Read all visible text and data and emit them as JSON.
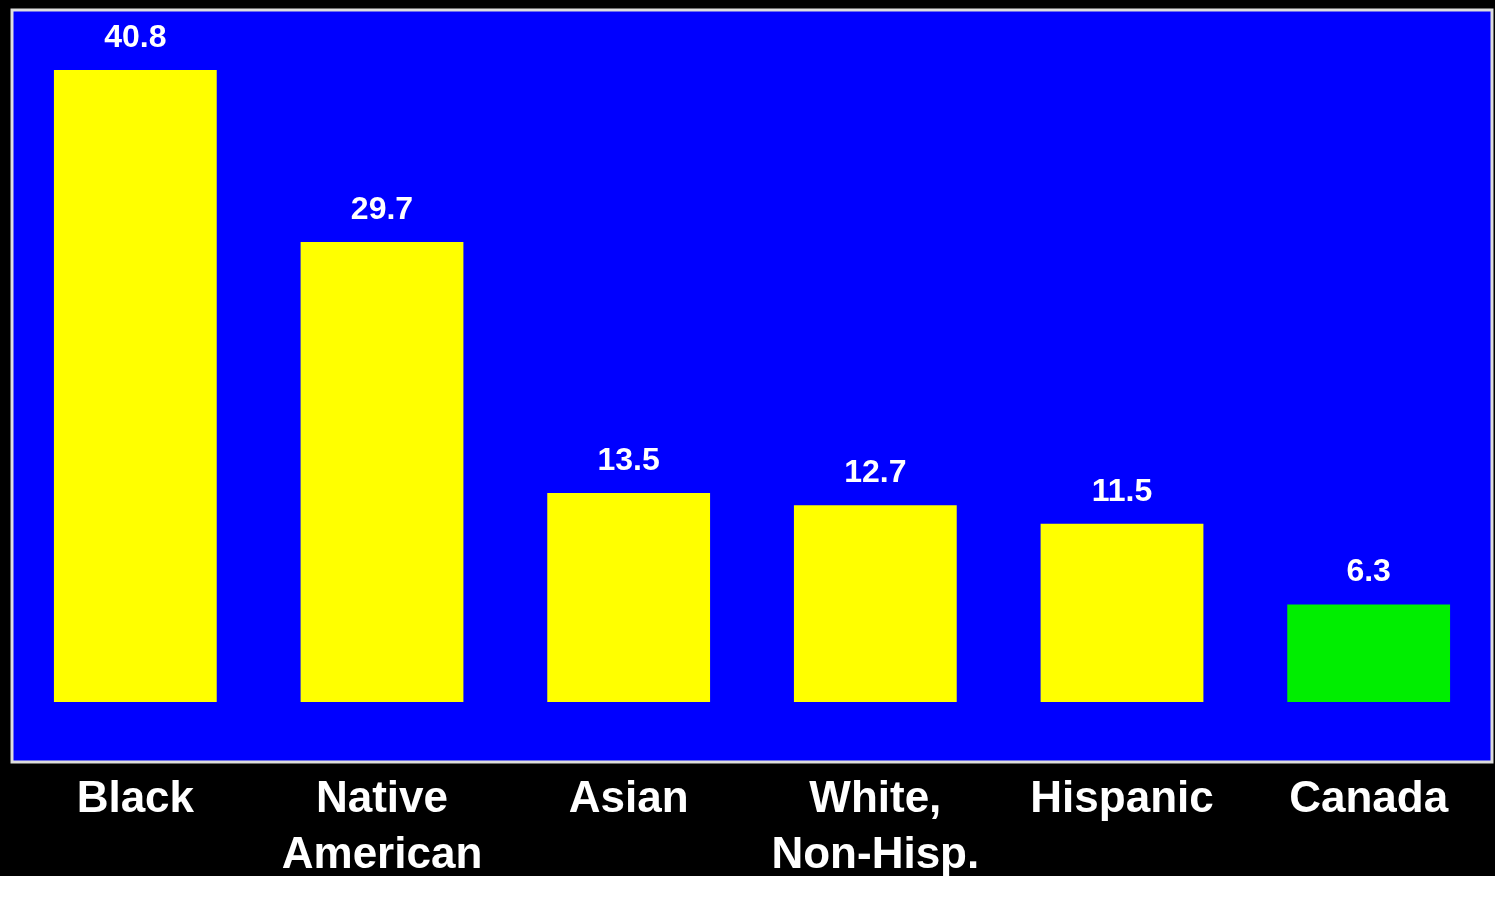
{
  "chart_data": {
    "type": "bar",
    "categories": [
      "Black",
      "Native American",
      "Asian",
      "White, Non-Hisp.",
      "Hispanic",
      "Canada"
    ],
    "values": [
      40.8,
      29.7,
      13.5,
      12.7,
      11.5,
      6.3
    ],
    "colors": [
      "#ffff00",
      "#ffff00",
      "#ffff00",
      "#ffff00",
      "#ffff00",
      "#00ee00"
    ],
    "data_labels": true
  }
}
